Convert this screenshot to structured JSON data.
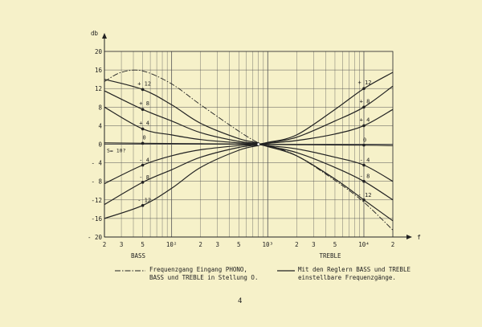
{
  "chart_data": {
    "type": "line",
    "y_label": "db",
    "x_label": "f",
    "y_range": [
      -20,
      20
    ],
    "y_ticks": [
      {
        "v": 20,
        "label": "20"
      },
      {
        "v": 16,
        "label": "16"
      },
      {
        "v": 12,
        "label": "12"
      },
      {
        "v": 8,
        "label": "8"
      },
      {
        "v": 4,
        "label": "4"
      },
      {
        "v": 0,
        "label": "0"
      },
      {
        "v": -4,
        "label": "- 4"
      },
      {
        "v": -8,
        "label": "- 8"
      },
      {
        "v": -12,
        "label": "-12"
      },
      {
        "v": -16,
        "label": "-16"
      },
      {
        "v": -20,
        "label": "- 20"
      }
    ],
    "x_range_hz": [
      20,
      20000
    ],
    "x_scale": "log",
    "x_ticks": [
      {
        "v": 20,
        "label": "2"
      },
      {
        "v": 30,
        "label": "3"
      },
      {
        "v": 50,
        "label": "5"
      },
      {
        "v": 100,
        "label": "10²"
      },
      {
        "v": 200,
        "label": "2"
      },
      {
        "v": 300,
        "label": "3"
      },
      {
        "v": 500,
        "label": "5"
      },
      {
        "v": 1000,
        "label": "10³"
      },
      {
        "v": 2000,
        "label": "2"
      },
      {
        "v": 3000,
        "label": "3"
      },
      {
        "v": 5000,
        "label": "5"
      },
      {
        "v": 10000,
        "label": "10⁴"
      },
      {
        "v": 20000,
        "label": "2"
      }
    ],
    "bass_label": "BASS",
    "treble_label": "TREBLE",
    "bass_marker_hz": 50,
    "treble_marker_hz": 10000,
    "bass_curves": [
      {
        "label": "+ 12",
        "points": [
          [
            20,
            14
          ],
          [
            50,
            11.8
          ],
          [
            100,
            8.5
          ],
          [
            200,
            4.5
          ],
          [
            500,
            1.2
          ],
          [
            800,
            0.3
          ]
        ]
      },
      {
        "label": "+ 8",
        "points": [
          [
            20,
            11.5
          ],
          [
            50,
            7.5
          ],
          [
            100,
            5
          ],
          [
            200,
            2.5
          ],
          [
            500,
            0.6
          ],
          [
            800,
            0.2
          ]
        ]
      },
      {
        "label": "+ 4",
        "points": [
          [
            20,
            8
          ],
          [
            50,
            3.3
          ],
          [
            100,
            2
          ],
          [
            200,
            1
          ],
          [
            500,
            0.3
          ],
          [
            800,
            0.1
          ]
        ]
      },
      {
        "label": "0",
        "points": [
          [
            20,
            0.3
          ],
          [
            50,
            0.2
          ],
          [
            200,
            0.1
          ],
          [
            800,
            0
          ]
        ]
      },
      {
        "label": "- 4",
        "points": [
          [
            20,
            -8.5
          ],
          [
            50,
            -4.5
          ],
          [
            100,
            -2.5
          ],
          [
            200,
            -1.2
          ],
          [
            500,
            -0.3
          ],
          [
            800,
            -0.1
          ]
        ]
      },
      {
        "label": "- 8",
        "points": [
          [
            20,
            -13
          ],
          [
            50,
            -8.2
          ],
          [
            100,
            -5.5
          ],
          [
            200,
            -2.8
          ],
          [
            500,
            -0.7
          ],
          [
            800,
            -0.2
          ]
        ]
      },
      {
        "label": "- 12",
        "points": [
          [
            20,
            -16
          ],
          [
            50,
            -13.2
          ],
          [
            100,
            -9.5
          ],
          [
            200,
            -5
          ],
          [
            500,
            -1.3
          ],
          [
            800,
            -0.3
          ]
        ]
      }
    ],
    "treble_curves": [
      {
        "label": "+ 12",
        "points": [
          [
            800,
            0
          ],
          [
            1000,
            0.4
          ],
          [
            2000,
            2
          ],
          [
            5000,
            7.5
          ],
          [
            10000,
            12
          ],
          [
            20000,
            15.5
          ]
        ]
      },
      {
        "label": "+ 8",
        "points": [
          [
            800,
            0
          ],
          [
            1000,
            0.3
          ],
          [
            2000,
            1.5
          ],
          [
            5000,
            5
          ],
          [
            10000,
            8
          ],
          [
            20000,
            12.5
          ]
        ]
      },
      {
        "label": "+ 4",
        "points": [
          [
            800,
            0
          ],
          [
            1000,
            0.2
          ],
          [
            2000,
            0.8
          ],
          [
            5000,
            2.2
          ],
          [
            10000,
            4
          ],
          [
            20000,
            7.5
          ]
        ]
      },
      {
        "label": "0",
        "points": [
          [
            800,
            0
          ],
          [
            2000,
            -0.1
          ],
          [
            10000,
            -0.2
          ],
          [
            20000,
            -0.3
          ]
        ]
      },
      {
        "label": "- 4",
        "points": [
          [
            800,
            0
          ],
          [
            1000,
            -0.3
          ],
          [
            2000,
            -1
          ],
          [
            5000,
            -2.8
          ],
          [
            10000,
            -4.5
          ],
          [
            20000,
            -8
          ]
        ]
      },
      {
        "label": "- 8",
        "points": [
          [
            800,
            0
          ],
          [
            1000,
            -0.4
          ],
          [
            2000,
            -1.8
          ],
          [
            5000,
            -5
          ],
          [
            10000,
            -8
          ],
          [
            20000,
            -12
          ]
        ]
      },
      {
        "label": "- 12",
        "points": [
          [
            800,
            0
          ],
          [
            1000,
            -0.5
          ],
          [
            2000,
            -2.5
          ],
          [
            5000,
            -7.5
          ],
          [
            10000,
            -12
          ],
          [
            20000,
            -16.5
          ]
        ]
      }
    ],
    "phono_curve": {
      "points": [
        [
          20,
          13.5
        ],
        [
          30,
          15.5
        ],
        [
          50,
          15.8
        ],
        [
          100,
          13
        ],
        [
          200,
          8.5
        ],
        [
          500,
          2.8
        ],
        [
          800,
          0.3
        ],
        [
          1000,
          -0.2
        ],
        [
          2000,
          -2.5
        ],
        [
          5000,
          -7.8
        ],
        [
          10000,
          -12.5
        ],
        [
          20000,
          -18.5
        ]
      ]
    },
    "annotation": "S= 10?"
  },
  "legend": {
    "dashdot_line1": "Frequenzgang Eingang PHONO,",
    "dashdot_line2": "BASS und TREBLE in Stellung O.",
    "solid_line1": "Mit den Reglern BASS und TREBLE",
    "solid_line2": "einstellbare Frequenzgänge."
  },
  "page_number": "4"
}
